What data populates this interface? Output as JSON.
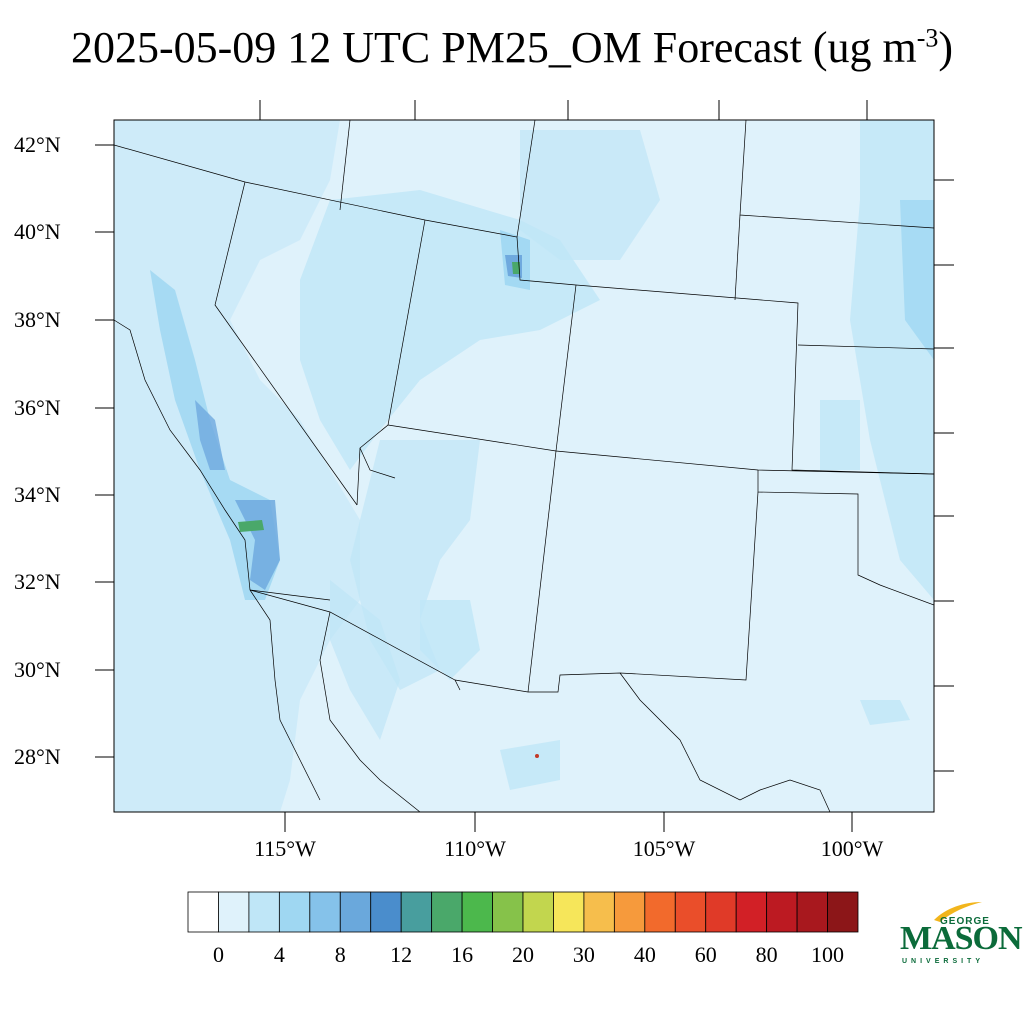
{
  "title": {
    "main": "2025-05-09 12 UTC PM25_OM Forecast (ug m",
    "superscript": "-3",
    "close": ")"
  },
  "map": {
    "lat_labels": [
      "42°N",
      "40°N",
      "38°N",
      "36°N",
      "34°N",
      "32°N",
      "30°N",
      "28°N"
    ],
    "lon_labels": [
      "115°W",
      "110°W",
      "105°W",
      "100°W"
    ],
    "background_color": "#dff2fb",
    "low_color": "#bfe6f7",
    "mid_color": "#9fd7f2",
    "high_color": "#6fa9de",
    "peak_color": "#4aa86a"
  },
  "colorbar": {
    "labels": [
      "0",
      "4",
      "8",
      "12",
      "16",
      "20",
      "30",
      "40",
      "60",
      "80",
      "100"
    ],
    "colors": [
      "#ffffff",
      "#dff2fb",
      "#bfe6f7",
      "#9fd7f2",
      "#85c2ea",
      "#6aa8dc",
      "#4a8dcc",
      "#489e9e",
      "#4aa86a",
      "#4cb84c",
      "#86c24a",
      "#c2d64e",
      "#f6e65a",
      "#f6be4c",
      "#f69a3c",
      "#f26a2c",
      "#ea4e2a",
      "#e03a28",
      "#d22026",
      "#bc1a22",
      "#a8181e",
      "#8c1618"
    ]
  },
  "logo": {
    "george": "GEORGE",
    "mason": "MASON",
    "university": "UNIVERSITY"
  }
}
